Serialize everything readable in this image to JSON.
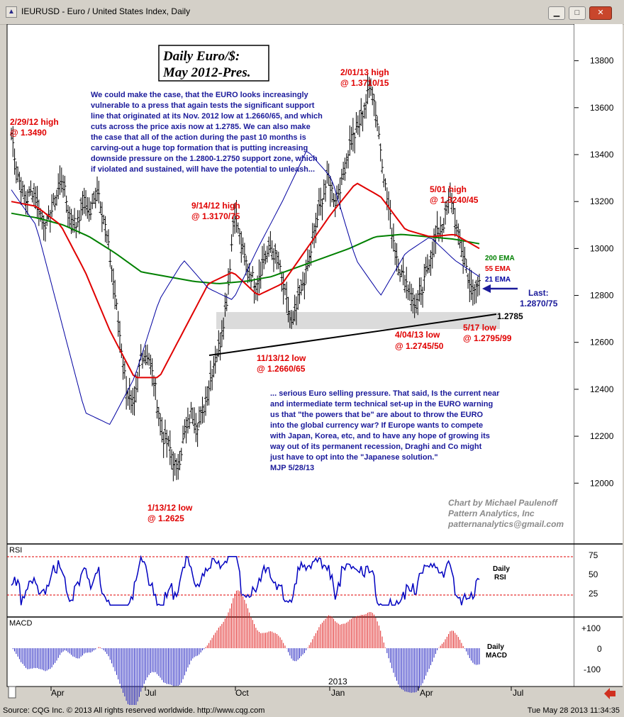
{
  "window": {
    "title": "IEURUSD - Euro / United States Index, Daily",
    "icon": "chart-icon",
    "buttons": [
      "minimize",
      "maximize",
      "close"
    ]
  },
  "headline": {
    "line1": "Daily Euro/$:",
    "line2": "May 2012-Pres."
  },
  "commentary_top": [
    "We could make the case, that the EURO looks increasingly",
    "vulnerable to a press that again tests the significant support",
    "line that originated at its Nov. 2012 low at 1.2660/65, and which",
    "cuts across the price axis now at 1.2785.  We can also make",
    "the case that all of the action during the past 10 months is",
    "carving-out a huge top formation that is putting increasing",
    "downside pressure on the 1.2800-1.2750 support zone, which",
    "if violated and sustained, will have the potential to unleash..."
  ],
  "commentary_bottom": [
    "... serious Euro selling pressure.  That said, Is the current near",
    "and intermediate term technical set-up in the EURO warning",
    "us that \"the powers that be\" are about to throw the EURO",
    "into the global currency war? If Europe wants to compete",
    "with Japan, Korea, etc, and to have any hope of growing its",
    "way out of its permanent recession, Draghi and Co might",
    "just have to opt into the \"Japanese solution.\"",
    "MJP  5/28/13"
  ],
  "credit": [
    "Chart by Michael Paulenoff",
    "Pattern Analytics, Inc",
    "patternanalytics@gmail.com"
  ],
  "annotations": {
    "a1": [
      "2/29/12 high",
      "@ 1.3490"
    ],
    "a2": [
      "1/13/12 low",
      "@ 1.2625"
    ],
    "a3": [
      "9/14/12 high",
      "@ 1.3170/75"
    ],
    "a4": [
      "11/13/12 low",
      "@ 1.2660/65"
    ],
    "a5": [
      "2/01/13 high",
      "@ 1.3710/15"
    ],
    "a6": [
      "4/04/13 low",
      "@ 1.2745/50"
    ],
    "a7": [
      "5/01 high",
      "@ 1.3240/45"
    ],
    "a8": [
      "5/17 low",
      "@ 1.2795/99"
    ],
    "last": [
      "Last:",
      "1.2870/75"
    ],
    "support": "1.2785"
  },
  "legend": {
    "ema200": "200 EMA",
    "ema55": "55 EMA",
    "ema21": "21 EMA"
  },
  "colors": {
    "price": "#000000",
    "ema200": "#008000",
    "ema55": "#e00000",
    "ema21": "#0000a0",
    "annotation": "#e00000",
    "text": "#1a1a9a",
    "macd_pos": "#e02020",
    "macd_neg": "#2020c0"
  },
  "panels": {
    "rsi": {
      "title": "RSI",
      "label": [
        "Daily",
        "RSI"
      ],
      "ticks": [
        "75",
        "50",
        "25"
      ]
    },
    "macd": {
      "title": "MACD",
      "label": [
        "Daily",
        "MACD"
      ],
      "ticks": [
        "+100",
        "0",
        "-100"
      ]
    }
  },
  "x_labels": [
    "Apr",
    "Jul",
    "Oct",
    "Jan",
    "Apr",
    "Jul"
  ],
  "year_label": "2013",
  "status": {
    "left": "Source: CQG Inc. © 2013 All rights reserved worldwide. http://www.cqg.com",
    "right": "Tue May 28 2013 11:34:35"
  },
  "chart_data": {
    "type": "line",
    "title": "Daily Euro/$: May 2012-Pres.",
    "ylim": [
      11750,
      13950
    ],
    "yticks": [
      12000,
      12200,
      12400,
      12600,
      12800,
      13000,
      13200,
      13400,
      13600,
      13800
    ],
    "series": [
      {
        "name": "price",
        "values": [
          13490,
          13300,
          13200,
          13250,
          13150,
          13100,
          13200,
          13300,
          13150,
          13100,
          13200,
          13150,
          13260,
          13100,
          12900,
          12650,
          12400,
          12300,
          12550,
          12550,
          12400,
          12200,
          12150,
          12050,
          12200,
          12300,
          12250,
          12350,
          12500,
          12600,
          12800,
          13170,
          13000,
          12900,
          12850,
          12950,
          13000,
          12950,
          12800,
          12660,
          12800,
          12900,
          13050,
          13200,
          13300,
          13200,
          13300,
          13450,
          13500,
          13600,
          13710,
          13500,
          13250,
          13050,
          12900,
          12850,
          12750,
          12800,
          12950,
          13050,
          13100,
          13240,
          13050,
          12950,
          12800,
          12870
        ]
      },
      {
        "name": "200 EMA",
        "values": [
          13150,
          13130,
          13100,
          13050,
          12980,
          12900,
          12880,
          12860,
          12850,
          12860,
          12880,
          12920,
          12960,
          13000,
          13050,
          13060,
          13050,
          13040,
          13020
        ]
      },
      {
        "name": "55 EMA",
        "values": [
          13200,
          13180,
          13100,
          12900,
          12650,
          12450,
          12450,
          12650,
          12850,
          12900,
          12800,
          12850,
          13000,
          13150,
          13280,
          13220,
          13080,
          13050,
          13060,
          13000
        ]
      },
      {
        "name": "21 EMA",
        "values": [
          13250,
          13100,
          12700,
          12300,
          12250,
          12450,
          12780,
          12950,
          12830,
          12780,
          13000,
          13200,
          13420,
          13300,
          12950,
          12800,
          12980,
          13050,
          12950,
          12880
        ]
      }
    ],
    "support_line": {
      "from": 12625,
      "to": 12785
    },
    "rsi": {
      "ylim": [
        0,
        100
      ],
      "levels": [
        75,
        25
      ],
      "ticks": [
        25,
        50,
        75
      ]
    },
    "macd": {
      "ticks": [
        -100,
        0,
        100
      ]
    }
  }
}
